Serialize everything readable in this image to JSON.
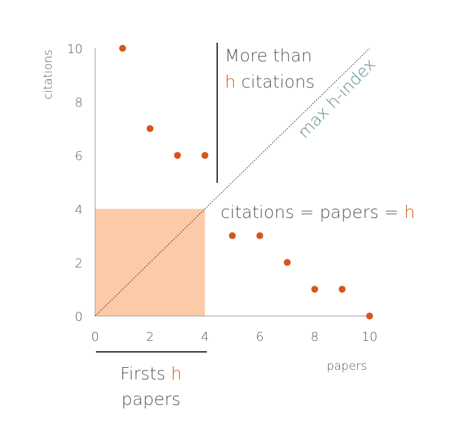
{
  "chart_data": {
    "type": "scatter",
    "x": [
      1,
      2,
      3,
      4,
      5,
      6,
      7,
      8,
      9,
      10
    ],
    "y": [
      10,
      7,
      6,
      6,
      3,
      3,
      2,
      1,
      1,
      0
    ],
    "xlabel": "papers",
    "ylabel": "citations",
    "xlim": [
      0,
      10
    ],
    "ylim": [
      0,
      10
    ],
    "xticks": [
      0,
      2,
      4,
      6,
      8,
      10
    ],
    "yticks": [
      0,
      2,
      4,
      6,
      8,
      10
    ],
    "grid": false,
    "h_index": 4,
    "annotations": {
      "more_than_line1": "More than",
      "more_than_h": "h",
      "more_than_line2_rest": "citations",
      "equality_prefix": "citations = papers = ",
      "equality_h": "h",
      "firsts_prefix": "Firsts ",
      "firsts_h": "h",
      "firsts_line2": "papers",
      "diagonal_label": "max h-index"
    }
  },
  "colors": {
    "point": "#d4561c",
    "highlight": "#d4561c",
    "h_square": "#fccaa6",
    "diagonal_label": "#5a8a8c",
    "text": "#555555",
    "axis": "#999999"
  }
}
